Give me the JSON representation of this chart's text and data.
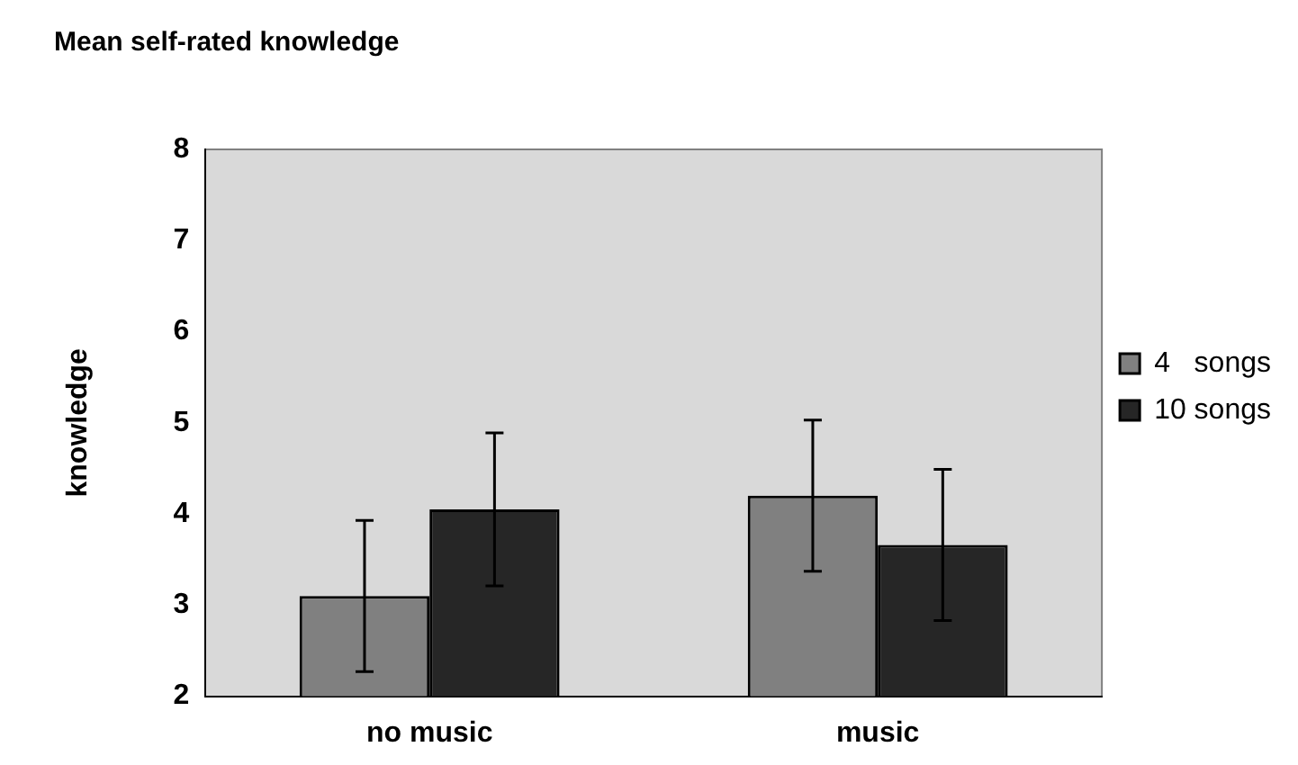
{
  "chart_data": {
    "type": "bar",
    "title": "Mean self-rated knowledge",
    "ylabel": "knowledge",
    "categories": [
      "no music",
      "music"
    ],
    "series": [
      {
        "name": "4   songs",
        "color": "#808080",
        "values": [
          3.1,
          4.2
        ],
        "errors": [
          0.83,
          0.83
        ]
      },
      {
        "name": "10 songs",
        "color": "#262626",
        "values": [
          4.05,
          3.66
        ],
        "errors": [
          0.84,
          0.83
        ]
      }
    ],
    "ylim": [
      2,
      8
    ],
    "yticks": [
      2,
      3,
      4,
      5,
      6,
      7,
      8
    ],
    "grid": false,
    "legend": "right"
  }
}
